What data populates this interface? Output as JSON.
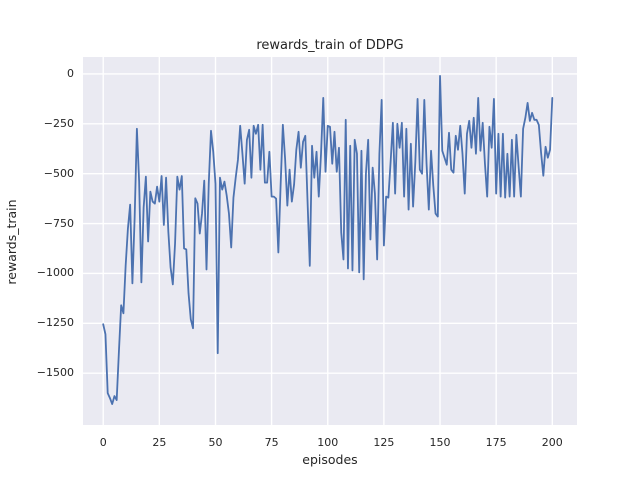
{
  "figure": {
    "title": "rewards_train of DDPG"
  },
  "chart_data": {
    "type": "line",
    "title": "rewards_train of DDPG",
    "xlabel": "episodes",
    "ylabel": "rewards_train",
    "grid": true,
    "legend_position": "none",
    "xlim": [
      -9,
      211
    ],
    "ylim": [
      -1760,
      85
    ],
    "xticks": {
      "values": [
        0,
        25,
        50,
        75,
        100,
        125,
        150,
        175,
        200
      ],
      "labels": [
        "0",
        "25",
        "50",
        "75",
        "100",
        "125",
        "150",
        "175",
        "200"
      ]
    },
    "yticks": {
      "values": [
        0,
        -250,
        -500,
        -750,
        -1000,
        -1250,
        -1500
      ],
      "labels": [
        "0",
        "−250",
        "−500",
        "−750",
        "−1000",
        "−1250",
        "−1500"
      ]
    },
    "style": {
      "plot_background": "#eaeaf2",
      "grid_color": "#ffffff",
      "line_color": "#4c72b0",
      "text_color": "#262626",
      "figure_background": "#ffffff"
    },
    "series": [
      {
        "name": "rewards_train",
        "color": "#4c72b0",
        "x_start": 0,
        "x_step": 1,
        "values": [
          -1255,
          -1305,
          -1600,
          -1625,
          -1655,
          -1615,
          -1635,
          -1390,
          -1160,
          -1200,
          -960,
          -775,
          -655,
          -1050,
          -720,
          -275,
          -540,
          -1045,
          -670,
          -515,
          -840,
          -590,
          -640,
          -650,
          -565,
          -640,
          -512,
          -757,
          -520,
          -790,
          -970,
          -1055,
          -850,
          -515,
          -580,
          -512,
          -875,
          -880,
          -1100,
          -1230,
          -1275,
          -623,
          -650,
          -800,
          -700,
          -535,
          -980,
          -550,
          -285,
          -390,
          -550,
          -1400,
          -520,
          -580,
          -540,
          -610,
          -700,
          -870,
          -620,
          -520,
          -430,
          -260,
          -400,
          -550,
          -330,
          -280,
          -520,
          -260,
          -300,
          -255,
          -480,
          -255,
          -545,
          -545,
          -390,
          -615,
          -615,
          -625,
          -895,
          -560,
          -255,
          -425,
          -660,
          -480,
          -640,
          -555,
          -380,
          -290,
          -470,
          -340,
          -310,
          -640,
          -962,
          -360,
          -520,
          -390,
          -615,
          -400,
          -120,
          -490,
          -260,
          -265,
          -450,
          -290,
          -490,
          -370,
          -795,
          -930,
          -230,
          -975,
          -360,
          -985,
          -330,
          -400,
          -995,
          -385,
          -1030,
          -500,
          -330,
          -830,
          -470,
          -600,
          -930,
          -400,
          -130,
          -860,
          -615,
          -620,
          -440,
          -245,
          -600,
          -250,
          -370,
          -245,
          -615,
          -275,
          -680,
          -350,
          -665,
          -440,
          -125,
          -480,
          -500,
          -130,
          -450,
          -680,
          -385,
          -560,
          -700,
          -715,
          -10,
          -385,
          -420,
          -455,
          -295,
          -480,
          -495,
          -310,
          -380,
          -260,
          -400,
          -600,
          -300,
          -235,
          -370,
          -220,
          -400,
          -120,
          -385,
          -245,
          -450,
          -615,
          -265,
          -370,
          -125,
          -600,
          -300,
          -615,
          -300,
          -620,
          -400,
          -615,
          -330,
          -615,
          -305,
          -465,
          -615,
          -275,
          -220,
          -145,
          -235,
          -195,
          -230,
          -230,
          -255,
          -395,
          -510,
          -365,
          -420,
          -380,
          -120
        ]
      }
    ]
  }
}
